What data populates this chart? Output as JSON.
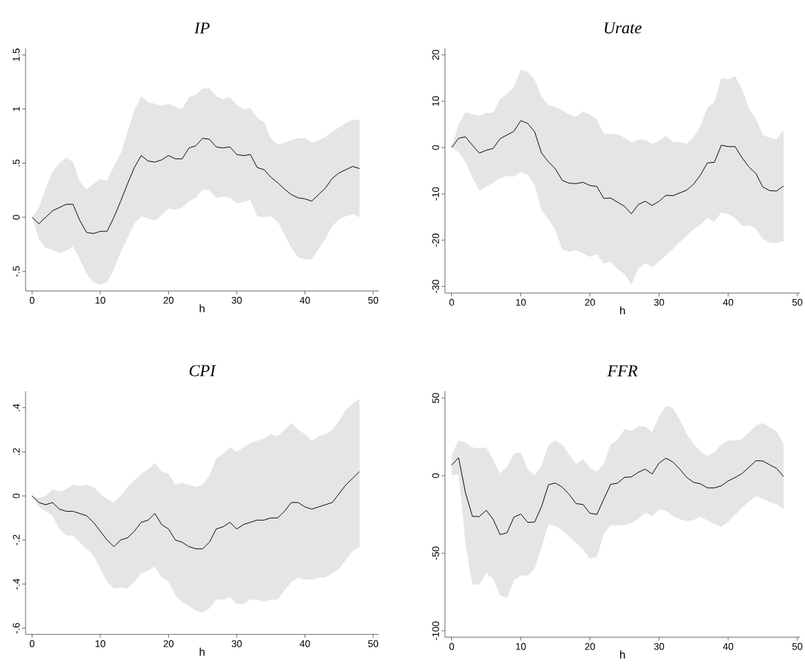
{
  "chart_data": [
    {
      "type": "line",
      "title": "IP",
      "xlabel": "h",
      "xlim": [
        -0.95,
        50.8
      ],
      "ylim": [
        -0.68,
        1.56
      ],
      "xticks": [
        0,
        10,
        20,
        30,
        40,
        50
      ],
      "yticks": [
        {
          "value": -0.5,
          "label": "-.5"
        },
        0,
        {
          "value": 0.5,
          "label": ".5"
        },
        1,
        {
          "value": 1.5,
          "label": "1.5"
        }
      ],
      "x": [
        0,
        1,
        2,
        3,
        4,
        5,
        6,
        7,
        8,
        9,
        10,
        11,
        12,
        13,
        14,
        15,
        16,
        17,
        18,
        19,
        20,
        21,
        22,
        23,
        24,
        25,
        26,
        27,
        28,
        29,
        30,
        31,
        32,
        33,
        34,
        35,
        36,
        37,
        38,
        39,
        40,
        41,
        42,
        43,
        44,
        45,
        46,
        47,
        48
      ],
      "series": [
        {
          "color": "#000000",
          "values": [
            0,
            -0.06,
            0.0,
            0.06,
            0.09,
            0.12,
            0.12,
            -0.03,
            -0.14,
            -0.15,
            -0.13,
            -0.13,
            0.0,
            0.15,
            0.31,
            0.46,
            0.57,
            0.52,
            0.51,
            0.53,
            0.57,
            0.54,
            0.54,
            0.64,
            0.66,
            0.73,
            0.72,
            0.65,
            0.64,
            0.65,
            0.58,
            0.57,
            0.58,
            0.46,
            0.44,
            0.37,
            0.32,
            0.26,
            0.21,
            0.18,
            0.17,
            0.15,
            0.21,
            0.27,
            0.36,
            0.41,
            0.44,
            0.47,
            0.45
          ],
          "upper": [
            0,
            0.09,
            0.27,
            0.42,
            0.5,
            0.55,
            0.51,
            0.33,
            0.26,
            0.31,
            0.35,
            0.34,
            0.47,
            0.59,
            0.79,
            0.99,
            1.12,
            1.06,
            1.05,
            1.03,
            1.05,
            1.02,
            1.0,
            1.11,
            1.13,
            1.19,
            1.19,
            1.12,
            1.09,
            1.11,
            1.04,
            1.0,
            1.01,
            0.92,
            0.88,
            0.73,
            0.67,
            0.69,
            0.71,
            0.73,
            0.73,
            0.69,
            0.71,
            0.74,
            0.79,
            0.83,
            0.87,
            0.9,
            0.9
          ],
          "lower": [
            0,
            -0.2,
            -0.28,
            -0.3,
            -0.33,
            -0.31,
            -0.27,
            -0.39,
            -0.52,
            -0.6,
            -0.62,
            -0.6,
            -0.48,
            -0.32,
            -0.19,
            -0.06,
            0.01,
            -0.01,
            -0.03,
            0.02,
            0.08,
            0.07,
            0.09,
            0.15,
            0.18,
            0.26,
            0.25,
            0.18,
            0.19,
            0.18,
            0.13,
            0.14,
            0.16,
            0.01,
            0.0,
            0.01,
            -0.04,
            -0.16,
            -0.28,
            -0.37,
            -0.39,
            -0.39,
            -0.29,
            -0.2,
            -0.08,
            -0.02,
            0.01,
            0.03,
            0.0
          ]
        }
      ]
    },
    {
      "type": "line",
      "title": "Urate",
      "xlabel": "h",
      "xlim": [
        -0.97,
        50.4
      ],
      "ylim": [
        -31.4,
        21.4
      ],
      "xticks": [
        0,
        10,
        20,
        30,
        40,
        50
      ],
      "yticks": [
        -30,
        -20,
        -10,
        0,
        10,
        20
      ],
      "x": [
        0,
        1,
        2,
        3,
        4,
        5,
        6,
        7,
        8,
        9,
        10,
        11,
        12,
        13,
        14,
        15,
        16,
        17,
        18,
        19,
        20,
        21,
        22,
        23,
        24,
        25,
        26,
        27,
        28,
        29,
        30,
        31,
        32,
        33,
        34,
        35,
        36,
        37,
        38,
        39,
        40,
        41,
        42,
        43,
        44,
        45,
        46,
        47,
        48
      ],
      "series": [
        {
          "color": "#000000",
          "values": [
            0,
            2.0,
            2.3,
            0.5,
            -1.2,
            -0.6,
            -0.2,
            1.9,
            2.7,
            3.5,
            5.8,
            5.2,
            3.4,
            -1.2,
            -3.1,
            -4.6,
            -7.1,
            -7.7,
            -7.8,
            -7.5,
            -8.2,
            -8.4,
            -11.0,
            -10.9,
            -11.8,
            -12.7,
            -14.3,
            -12.3,
            -11.6,
            -12.5,
            -11.6,
            -10.3,
            -10.4,
            -9.8,
            -9.2,
            -7.9,
            -5.9,
            -3.3,
            -3.2,
            0.5,
            0.2,
            0.2,
            -2.2,
            -4.2,
            -5.6,
            -8.5,
            -9.3,
            -9.4,
            -8.3
          ],
          "upper": [
            0,
            5.0,
            7.6,
            7.2,
            6.9,
            7.5,
            7.5,
            10.4,
            11.5,
            13.1,
            16.8,
            16.3,
            14.6,
            11.0,
            9.2,
            8.7,
            8.0,
            7.1,
            6.6,
            7.8,
            7.1,
            6.1,
            3.0,
            2.9,
            2.9,
            2.1,
            1.1,
            1.7,
            1.6,
            0.8,
            1.4,
            2.5,
            1.2,
            1.1,
            0.8,
            2.2,
            4.7,
            8.6,
            9.8,
            15.0,
            14.7,
            15.4,
            12.6,
            8.4,
            6.2,
            2.7,
            2.1,
            1.8,
            3.7
          ],
          "lower": [
            0,
            -1.0,
            -3.1,
            -6.5,
            -9.3,
            -8.4,
            -7.7,
            -6.6,
            -6.1,
            -6.3,
            -5.2,
            -5.9,
            -8.1,
            -13.6,
            -15.4,
            -17.8,
            -22.0,
            -22.5,
            -22.1,
            -22.8,
            -23.6,
            -23.0,
            -25.1,
            -24.6,
            -26.3,
            -27.3,
            -29.6,
            -26.2,
            -24.9,
            -25.8,
            -24.6,
            -23.2,
            -21.9,
            -20.4,
            -19.0,
            -17.7,
            -16.6,
            -15.2,
            -16.0,
            -14.0,
            -14.4,
            -15.2,
            -16.9,
            -16.8,
            -17.5,
            -19.7,
            -20.5,
            -20.6,
            -20.2
          ]
        }
      ]
    },
    {
      "type": "line",
      "title": "CPI",
      "xlabel": "h",
      "xlim": [
        -0.95,
        50.8
      ],
      "ylim": [
        -0.628,
        0.475
      ],
      "xticks": [
        0,
        10,
        20,
        30,
        40,
        50
      ],
      "yticks": [
        {
          "value": -0.6,
          "label": "-.6"
        },
        {
          "value": -0.4,
          "label": "-.4"
        },
        {
          "value": -0.2,
          "label": "-.2"
        },
        0,
        {
          "value": 0.2,
          "label": ".2"
        },
        {
          "value": 0.4,
          "label": ".4"
        }
      ],
      "x": [
        0,
        1,
        2,
        3,
        4,
        5,
        6,
        7,
        8,
        9,
        10,
        11,
        12,
        13,
        14,
        15,
        16,
        17,
        18,
        19,
        20,
        21,
        22,
        23,
        24,
        25,
        26,
        27,
        28,
        29,
        30,
        31,
        32,
        33,
        34,
        35,
        36,
        37,
        38,
        39,
        40,
        41,
        42,
        43,
        44,
        45,
        46,
        47,
        48
      ],
      "series": [
        {
          "color": "#000000",
          "values": [
            0,
            -0.03,
            -0.04,
            -0.03,
            -0.06,
            -0.07,
            -0.07,
            -0.08,
            -0.09,
            -0.12,
            -0.16,
            -0.2,
            -0.23,
            -0.2,
            -0.19,
            -0.16,
            -0.12,
            -0.11,
            -0.08,
            -0.13,
            -0.15,
            -0.2,
            -0.21,
            -0.23,
            -0.24,
            -0.24,
            -0.21,
            -0.15,
            -0.14,
            -0.12,
            -0.15,
            -0.13,
            -0.12,
            -0.11,
            -0.11,
            -0.1,
            -0.1,
            -0.07,
            -0.03,
            -0.03,
            -0.05,
            -0.06,
            -0.05,
            -0.04,
            -0.03,
            0.01,
            0.05,
            0.08,
            0.11
          ],
          "upper": [
            0,
            -0.01,
            0.0,
            0.03,
            0.02,
            0.03,
            0.05,
            0.045,
            0.05,
            0.04,
            0.01,
            -0.015,
            -0.03,
            0.0,
            0.04,
            0.07,
            0.1,
            0.12,
            0.15,
            0.11,
            0.1,
            0.05,
            0.06,
            0.05,
            0.04,
            0.05,
            0.09,
            0.17,
            0.19,
            0.22,
            0.2,
            0.22,
            0.24,
            0.25,
            0.26,
            0.28,
            0.27,
            0.3,
            0.33,
            0.3,
            0.28,
            0.25,
            0.27,
            0.28,
            0.3,
            0.34,
            0.39,
            0.42,
            0.44
          ],
          "lower": [
            0,
            -0.05,
            -0.07,
            -0.09,
            -0.15,
            -0.18,
            -0.18,
            -0.21,
            -0.24,
            -0.27,
            -0.33,
            -0.39,
            -0.42,
            -0.415,
            -0.42,
            -0.39,
            -0.35,
            -0.34,
            -0.32,
            -0.37,
            -0.39,
            -0.45,
            -0.48,
            -0.5,
            -0.52,
            -0.53,
            -0.51,
            -0.47,
            -0.47,
            -0.46,
            -0.49,
            -0.49,
            -0.47,
            -0.47,
            -0.48,
            -0.47,
            -0.47,
            -0.43,
            -0.39,
            -0.37,
            -0.38,
            -0.38,
            -0.37,
            -0.37,
            -0.35,
            -0.33,
            -0.29,
            -0.25,
            -0.23
          ]
        }
      ]
    },
    {
      "type": "line",
      "title": "FFR",
      "xlabel": "h",
      "xlim": [
        -0.97,
        50.4
      ],
      "ylim": [
        -104.1,
        54.5
      ],
      "xticks": [
        0,
        10,
        20,
        30,
        40,
        50
      ],
      "yticks": [
        -100,
        -50,
        0,
        50
      ],
      "x": [
        0,
        1,
        2,
        3,
        4,
        5,
        6,
        7,
        8,
        9,
        10,
        11,
        12,
        13,
        14,
        15,
        16,
        17,
        18,
        19,
        20,
        21,
        22,
        23,
        24,
        25,
        26,
        27,
        28,
        29,
        30,
        31,
        32,
        33,
        34,
        35,
        36,
        37,
        38,
        39,
        40,
        41,
        42,
        43,
        44,
        45,
        46,
        47,
        48
      ],
      "series": [
        {
          "color": "#000000",
          "values": [
            6.8,
            11.6,
            -11.0,
            -26.2,
            -26.4,
            -22.3,
            -28.1,
            -38.0,
            -36.8,
            -26.8,
            -24.7,
            -30.1,
            -29.9,
            -19.9,
            -5.9,
            -4.7,
            -7.4,
            -12.1,
            -18.0,
            -18.6,
            -24.2,
            -25.0,
            -15.2,
            -5.6,
            -4.8,
            -1.1,
            -0.8,
            2.2,
            4.2,
            1.1,
            8.1,
            11.3,
            8.8,
            4.2,
            -1.1,
            -4.3,
            -5.3,
            -7.9,
            -7.9,
            -6.5,
            -3.4,
            -1.2,
            1.4,
            5.4,
            9.6,
            9.5,
            7.0,
            4.7,
            -0.5
          ],
          "upper": [
            13.3,
            22.8,
            21.3,
            18.2,
            17.7,
            18.2,
            10.2,
            1.4,
            5.7,
            14.1,
            14.9,
            4.0,
            0.2,
            6.7,
            19.4,
            22.8,
            19.9,
            13.5,
            7.3,
            10.5,
            5.0,
            2.5,
            7.6,
            20.2,
            22.8,
            29.9,
            28.9,
            31.6,
            31.8,
            28.2,
            38.2,
            45.0,
            43.6,
            36.0,
            26.8,
            20.3,
            15.5,
            12.6,
            15.2,
            19.9,
            22.8,
            22.5,
            23.6,
            27.8,
            32.3,
            34.0,
            31.3,
            28.5,
            20.5
          ],
          "lower": [
            0.2,
            0.8,
            -43.6,
            -70.3,
            -70.3,
            -62.8,
            -66.6,
            -77.1,
            -78.8,
            -67.6,
            -64.4,
            -64.4,
            -59.9,
            -45.9,
            -31.5,
            -32.3,
            -35.2,
            -39.2,
            -43.3,
            -47.8,
            -53.4,
            -52.4,
            -37.7,
            -32.0,
            -32.1,
            -32.0,
            -30.6,
            -27.8,
            -23.7,
            -26.1,
            -22.0,
            -22.6,
            -26.2,
            -28.1,
            -29.3,
            -28.5,
            -26.5,
            -28.7,
            -31.0,
            -33.0,
            -29.6,
            -25.3,
            -20.8,
            -16.6,
            -13.3,
            -15.0,
            -16.9,
            -18.3,
            -21.6
          ]
        }
      ]
    }
  ]
}
